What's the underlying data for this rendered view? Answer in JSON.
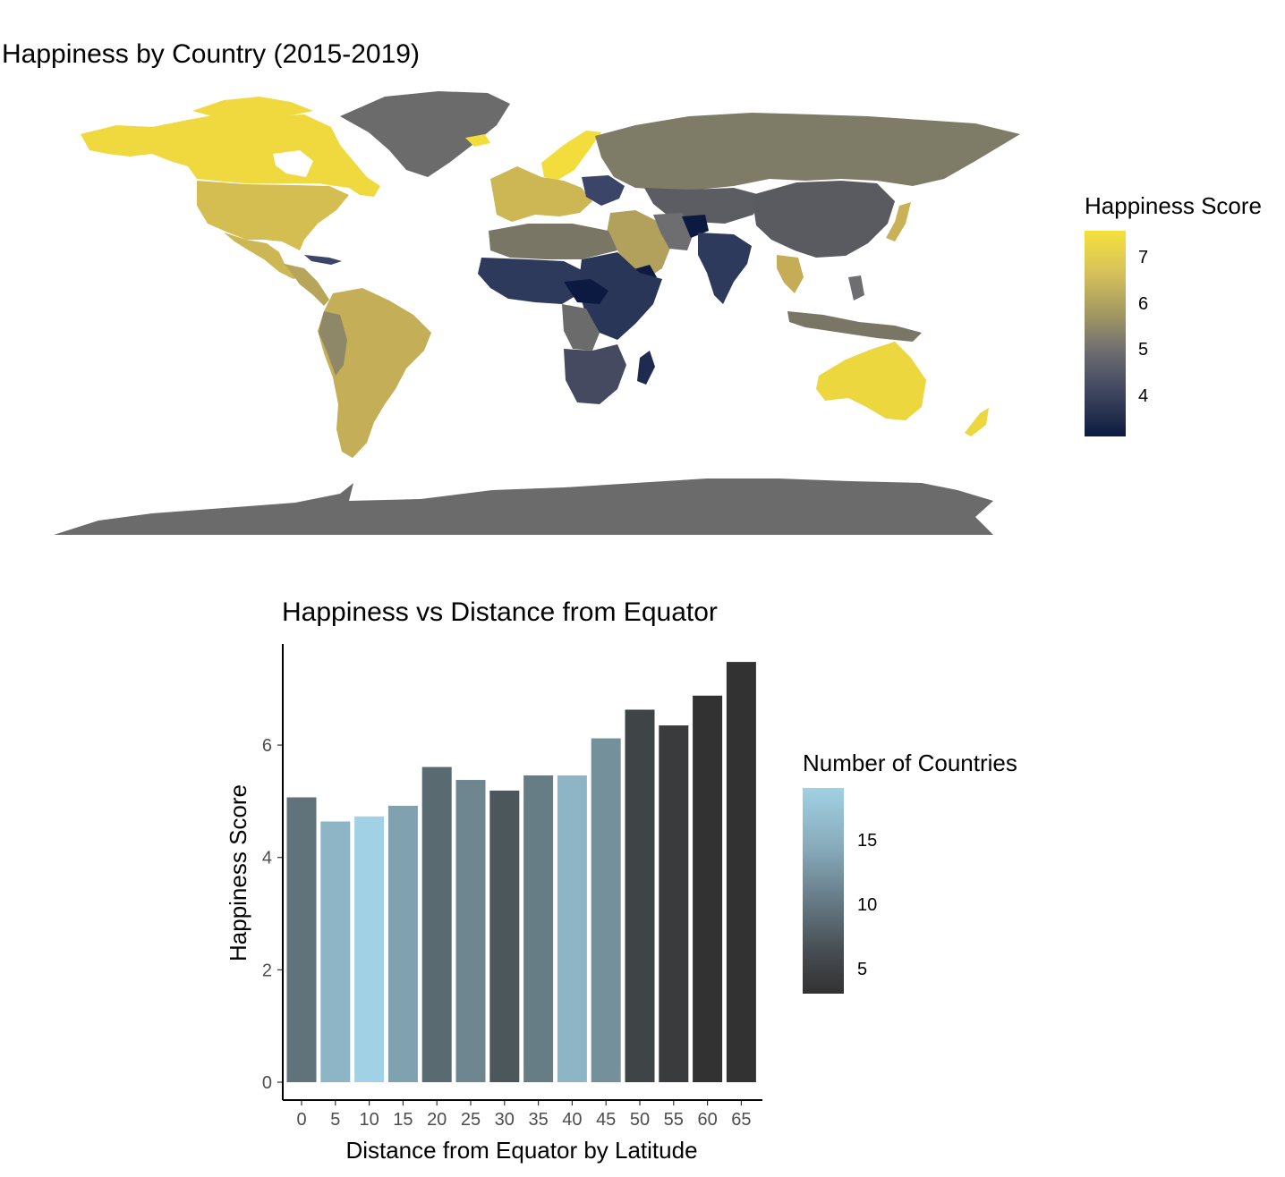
{
  "map": {
    "title": "Happiness by Country (2015-2019)",
    "legend_title": "Happiness Score",
    "legend_ticks": [
      "7",
      "6",
      "5",
      "4"
    ],
    "colors": {
      "high": "#f5e13c",
      "mid": "#6e6e70",
      "low": "#0c1a42",
      "no_data": "#6b6b6b"
    }
  },
  "chart_data": [
    {
      "type": "bar",
      "title": "Happiness vs Distance from Equator",
      "xlabel": "Distance from Equator by Latitude",
      "ylabel": "Happiness Score",
      "categories": [
        "0",
        "5",
        "10",
        "15",
        "20",
        "25",
        "30",
        "35",
        "40",
        "45",
        "50",
        "55",
        "60",
        "65"
      ],
      "values": [
        5.07,
        4.64,
        4.73,
        4.92,
        5.61,
        5.38,
        5.19,
        5.46,
        5.46,
        6.12,
        6.63,
        6.35,
        6.88,
        7.48
      ],
      "fill_values": [
        9,
        16,
        19,
        14,
        8,
        11,
        6,
        10,
        16,
        12,
        4,
        3,
        2,
        2
      ],
      "ylim": [
        0,
        7.8
      ],
      "yticks": [
        "0",
        "2",
        "4",
        "6"
      ],
      "legend_title": "Number of Countries",
      "legend_ticks": [
        "15",
        "10",
        "5"
      ],
      "fill_range": [
        2,
        19
      ],
      "colors": {
        "low": "#323232",
        "high": "#a1d1e4"
      },
      "grid": false,
      "legend_position": "right"
    }
  ]
}
